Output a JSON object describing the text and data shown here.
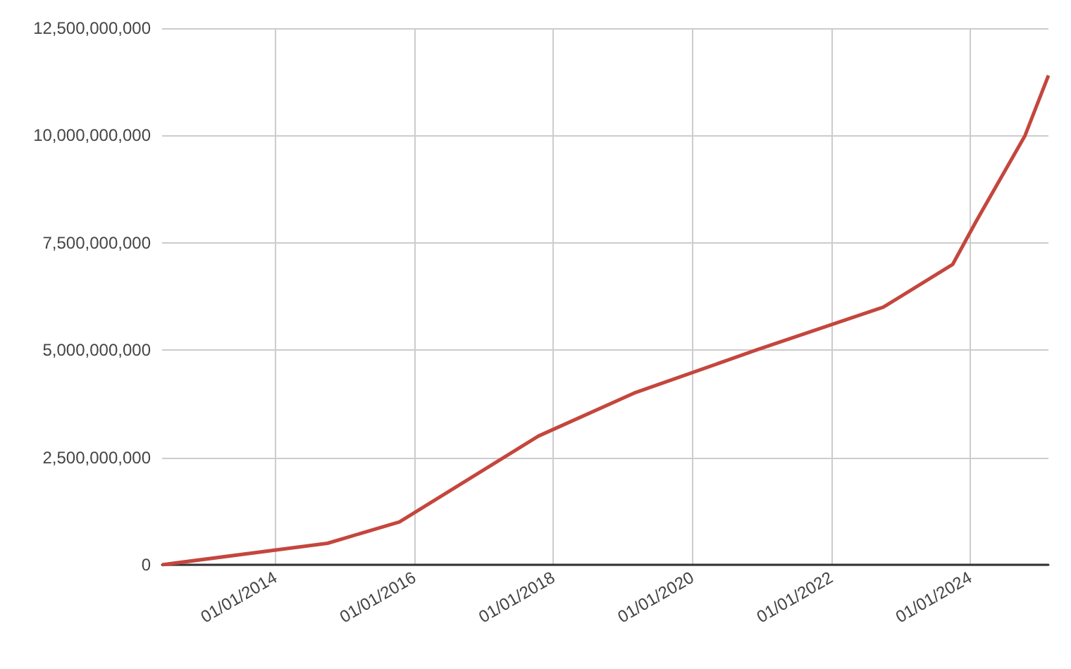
{
  "chart_data": {
    "type": "line",
    "x": [
      "2012-05-15",
      "2014-10-01",
      "2015-10-15",
      "2017-10-15",
      "2019-03-01",
      "2020-12-01",
      "2022-10-01",
      "2023-10-01",
      "2024-02-01",
      "2024-10-15",
      "2025-02-15"
    ],
    "series": [
      {
        "color": "#c4463d",
        "values": [
          0,
          500000000,
          1000000000,
          3000000000,
          4000000000,
          5000000000,
          6000000000,
          7000000000,
          8000000000,
          10000000000,
          11400000000
        ]
      }
    ],
    "xlim": [
      "2012-05-15",
      "2025-02-15"
    ],
    "xticks": [
      {
        "value": "2014-01-01",
        "label": "01/01/2014"
      },
      {
        "value": "2016-01-01",
        "label": "01/01/2016"
      },
      {
        "value": "2018-01-01",
        "label": "01/01/2018"
      },
      {
        "value": "2020-01-01",
        "label": "01/01/2020"
      },
      {
        "value": "2022-01-01",
        "label": "01/01/2022"
      },
      {
        "value": "2024-01-01",
        "label": "01/01/2024"
      }
    ],
    "ylim": [
      0,
      12500000000
    ],
    "yticks": [
      {
        "value": 0,
        "label": "0"
      },
      {
        "value": 2500000000,
        "label": "2,500,000,000"
      },
      {
        "value": 5000000000,
        "label": "5,000,000,000"
      },
      {
        "value": 7500000000,
        "label": "7,500,000,000"
      },
      {
        "value": 10000000000,
        "label": "10,000,000,000"
      },
      {
        "value": 12500000000,
        "label": "12,500,000,000"
      }
    ],
    "grid": true,
    "marker": "none",
    "line_style": "solid"
  }
}
